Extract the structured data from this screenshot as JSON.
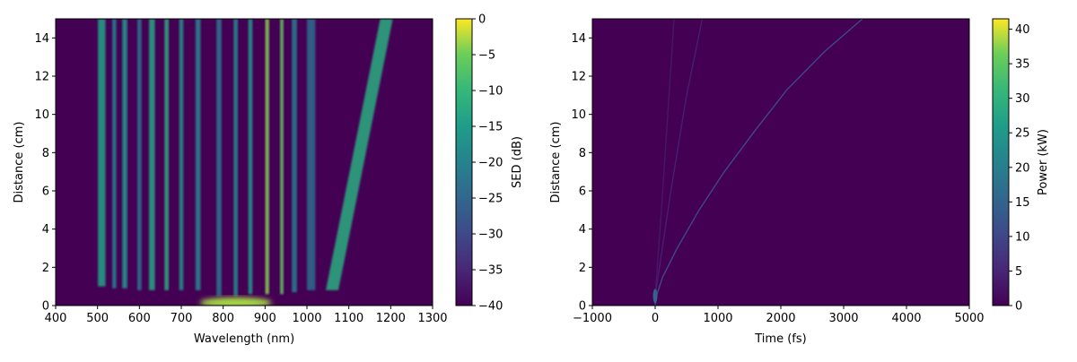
{
  "chart_data": [
    {
      "type": "heatmap",
      "xlabel": "Wavelength (nm)",
      "ylabel": "Distance (cm)",
      "xlim": [
        400,
        1300
      ],
      "ylim": [
        0,
        15
      ],
      "xticks": [
        400,
        500,
        600,
        700,
        800,
        900,
        1000,
        1100,
        1200,
        1300
      ],
      "yticks": [
        0,
        2,
        4,
        6,
        8,
        10,
        12,
        14
      ],
      "colorbar": {
        "label": "SED (dB)",
        "range": [
          -40,
          0
        ],
        "ticks": [
          0,
          -5,
          -10,
          -15,
          -20,
          -25,
          -30,
          -35,
          -40
        ],
        "colormap": "viridis"
      },
      "background_value": -40,
      "grid": false,
      "features": [
        {
          "x": 510,
          "dx": 18,
          "ys": 1.0,
          "ye": 15,
          "v": -14
        },
        {
          "x": 540,
          "dx": 10,
          "ys": 0.9,
          "ye": 15,
          "v": -20
        },
        {
          "x": 565,
          "dx": 12,
          "ys": 0.9,
          "ye": 15,
          "v": -16
        },
        {
          "x": 600,
          "dx": 10,
          "ys": 0.8,
          "ye": 15,
          "v": -22
        },
        {
          "x": 630,
          "dx": 14,
          "ys": 0.8,
          "ye": 15,
          "v": -13
        },
        {
          "x": 665,
          "dx": 10,
          "ys": 0.8,
          "ye": 15,
          "v": -12
        },
        {
          "x": 700,
          "dx": 10,
          "ys": 0.8,
          "ye": 15,
          "v": -17
        },
        {
          "x": 740,
          "dx": 12,
          "ys": 0.8,
          "ye": 15,
          "v": -19
        },
        {
          "x": 790,
          "dx": 12,
          "ys": 0.5,
          "ye": 15,
          "v": -22
        },
        {
          "x": 830,
          "dx": 10,
          "ys": 0.5,
          "ye": 15,
          "v": -18
        },
        {
          "x": 865,
          "dx": 10,
          "ys": 0.6,
          "ye": 15,
          "v": -16
        },
        {
          "x": 905,
          "dx": 9,
          "ys": 0.6,
          "ye": 15,
          "v": -4
        },
        {
          "x": 940,
          "dx": 8,
          "ys": 0.6,
          "ye": 15,
          "v": -6
        },
        {
          "x": 970,
          "dx": 12,
          "ys": 0.7,
          "ye": 15,
          "v": -20
        },
        {
          "x": 1010,
          "dx": 20,
          "ys": 0.8,
          "ye": 15,
          "v": -24
        },
        {
          "x": 1060,
          "x2": 1190,
          "dx": 30,
          "ys": 0.8,
          "ye": 15,
          "v": -12
        }
      ],
      "pump": {
        "x": 830,
        "y": 0.15,
        "v": -3
      }
    },
    {
      "type": "heatmap",
      "xlabel": "Time (fs)",
      "ylabel": "Distance (cm)",
      "xlim": [
        -1000,
        5000
      ],
      "ylim": [
        0,
        15
      ],
      "xticks": [
        -1000,
        0,
        1000,
        2000,
        3000,
        4000,
        5000
      ],
      "yticks": [
        0,
        2,
        4,
        6,
        8,
        10,
        12,
        14
      ],
      "colorbar": {
        "label": "Power (kW)",
        "range": [
          0,
          41.5
        ],
        "ticks": [
          0,
          5,
          10,
          15,
          20,
          25,
          30,
          35,
          40
        ],
        "colormap": "viridis"
      },
      "background_value": 0,
      "grid": false,
      "traces": [
        {
          "points": [
            [
              0,
              0
            ],
            [
              20,
              0.5
            ],
            [
              120,
              1.5
            ],
            [
              350,
              3
            ],
            [
              700,
              5
            ],
            [
              1100,
              7
            ],
            [
              1600,
              9.2
            ],
            [
              2100,
              11.3
            ],
            [
              2700,
              13.3
            ],
            [
              3300,
              15
            ]
          ],
          "v": 10
        },
        {
          "points": [
            [
              0,
              0.5
            ],
            [
              100,
              5
            ],
            [
              200,
              10
            ],
            [
              300,
              15
            ]
          ],
          "v": 3
        },
        {
          "points": [
            [
              0,
              0.5
            ],
            [
              250,
              6
            ],
            [
              500,
              11
            ],
            [
              750,
              15
            ]
          ],
          "v": 4
        }
      ],
      "peak": {
        "x": 0,
        "y": 0.5,
        "v": 15
      }
    }
  ]
}
